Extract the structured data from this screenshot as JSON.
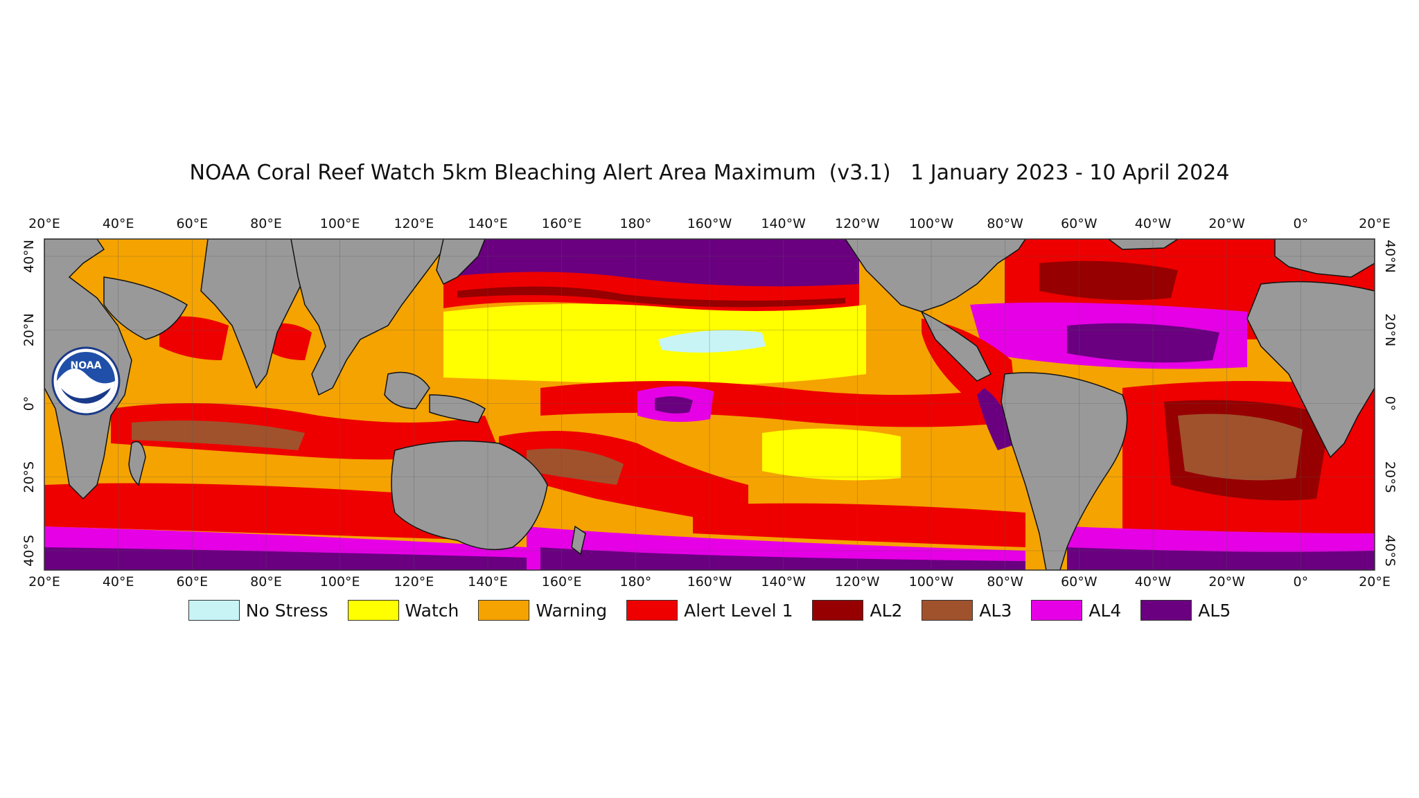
{
  "title": "NOAA Coral Reef Watch 5km Bleaching Alert Area Maximum  (v3.1)   1 January 2023 - 10 April 2024",
  "logo": {
    "text": "NOAA"
  },
  "longitude_ticks": [
    "20°E",
    "40°E",
    "60°E",
    "80°E",
    "100°E",
    "120°E",
    "140°E",
    "160°E",
    "180°",
    "160°W",
    "140°W",
    "120°W",
    "100°W",
    "80°W",
    "60°W",
    "40°W",
    "20°W",
    "0°",
    "20°E"
  ],
  "latitude_ticks": [
    "40°N",
    "20°N",
    "0°",
    "20°S",
    "40°S"
  ],
  "legend": [
    {
      "label": "No Stress",
      "color": "#c8f4f6"
    },
    {
      "label": "Watch",
      "color": "#ffff00"
    },
    {
      "label": "Warning",
      "color": "#f5a300"
    },
    {
      "label": "Alert Level 1",
      "color": "#ee0000"
    },
    {
      "label": "AL2",
      "color": "#960000"
    },
    {
      "label": "AL3",
      "color": "#a0522d"
    },
    {
      "label": "AL4",
      "color": "#e600e6"
    },
    {
      "label": "AL5",
      "color": "#6a0080"
    }
  ],
  "colors": {
    "land": "#999999",
    "coast": "#111111"
  }
}
